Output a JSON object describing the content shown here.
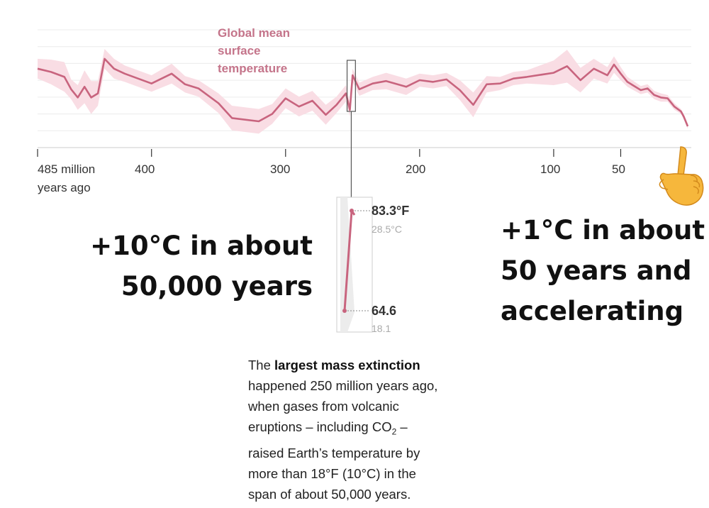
{
  "chart_data": {
    "type": "line",
    "title": "Global mean surface temperature",
    "title_lines": [
      "Global mean",
      "surface",
      "temperature"
    ],
    "xlabel": "",
    "ylabel": "",
    "x_unit": "million years ago",
    "xlim": [
      485,
      0
    ],
    "x_reversed": true,
    "grid": true,
    "line_color": "#c8647e",
    "band_color": "#f9dde4",
    "x_ticks": [
      {
        "value": 485,
        "label": "485 million",
        "label2": "years ago"
      },
      {
        "value": 400,
        "label": "400"
      },
      {
        "value": 300,
        "label": "300"
      },
      {
        "value": 200,
        "label": "200"
      },
      {
        "value": 100,
        "label": "100"
      },
      {
        "value": 50,
        "label": "50"
      }
    ],
    "series": [
      {
        "x": [
          485,
          475,
          465,
          460,
          455,
          450,
          445,
          440,
          435,
          428,
          420,
          400,
          385,
          375,
          365,
          350,
          340,
          320,
          310,
          300,
          290,
          280,
          270,
          262,
          255,
          252,
          250,
          245,
          235,
          225,
          210,
          200,
          190,
          180,
          170,
          160,
          150,
          140,
          130,
          120,
          100,
          90,
          80,
          70,
          60,
          55,
          50,
          45,
          35,
          30,
          25,
          20,
          15,
          10,
          5,
          3,
          0
        ],
        "y": [
          0.7,
          0.66,
          0.6,
          0.45,
          0.35,
          0.48,
          0.35,
          0.4,
          0.82,
          0.7,
          0.64,
          0.52,
          0.64,
          0.51,
          0.46,
          0.28,
          0.1,
          0.06,
          0.15,
          0.34,
          0.24,
          0.31,
          0.14,
          0.26,
          0.4,
          0.2,
          0.62,
          0.45,
          0.52,
          0.55,
          0.48,
          0.56,
          0.54,
          0.57,
          0.44,
          0.26,
          0.51,
          0.52,
          0.58,
          0.6,
          0.65,
          0.73,
          0.56,
          0.7,
          0.62,
          0.75,
          0.64,
          0.54,
          0.44,
          0.46,
          0.38,
          0.35,
          0.34,
          0.24,
          0.18,
          0.12,
          0.0
        ],
        "band": [
          0.12,
          0.15,
          0.18,
          0.12,
          0.15,
          0.2,
          0.2,
          0.15,
          0.12,
          0.12,
          0.1,
          0.1,
          0.12,
          0.1,
          0.1,
          0.12,
          0.15,
          0.15,
          0.12,
          0.12,
          0.12,
          0.12,
          0.12,
          0.1,
          0.1,
          0.08,
          0.08,
          0.08,
          0.08,
          0.1,
          0.1,
          0.08,
          0.08,
          0.08,
          0.12,
          0.15,
          0.1,
          0.08,
          0.08,
          0.08,
          0.15,
          0.2,
          0.15,
          0.12,
          0.1,
          0.1,
          0.08,
          0.06,
          0.05,
          0.05,
          0.05,
          0.05,
          0.04,
          0.04,
          0.03,
          0.03,
          0.03
        ]
      }
    ],
    "highlight": {
      "x_start": 252,
      "x_end": 250
    },
    "inset": {
      "type": "line",
      "high_f": "83.3°F",
      "high_c": "28.5°C",
      "low_f": "64.6",
      "low_c": "18.1",
      "values_f": [
        64.6,
        83.3
      ]
    }
  },
  "annotations": {
    "left_lines": [
      "+10°C in about",
      "50,000 years"
    ],
    "right_lines": [
      "+1°C in about",
      "50 years and",
      "accelerating"
    ],
    "pointer_icon": "pointing-hand-icon"
  },
  "caption": {
    "pre_bold": "The ",
    "bold": "largest mass extinction",
    "line2": "happened 250 million years ago,",
    "line3": "when gases from volcanic",
    "line4_a": "eruptions – including CO",
    "line4_sub": "2",
    "line4_b": " –",
    "line5": "raised Earth’s temperature by",
    "line6": "more than 18°F (10°C) in the",
    "line7": "span of about 50,000 years."
  }
}
